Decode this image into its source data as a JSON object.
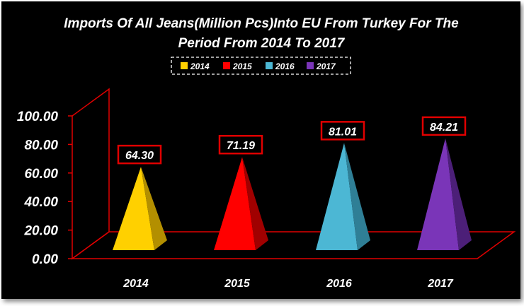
{
  "chart_data": {
    "type": "bar",
    "title_lines": [
      "Imports Of All Jeans(Million Pcs)Into EU From Turkey For The",
      "Period From 2014 To 2017"
    ],
    "categories": [
      "2014",
      "2015",
      "2016",
      "2017"
    ],
    "values": [
      64.3,
      71.19,
      81.01,
      84.21
    ],
    "value_labels": [
      "64.30",
      "71.19",
      "81.01",
      "84.21"
    ],
    "ylim": [
      0,
      100
    ],
    "y_ticks": [
      "0.00",
      "20.00",
      "40.00",
      "60.00",
      "80.00",
      "100.00"
    ],
    "xlabel": "",
    "ylabel": "",
    "legend": {
      "placement": "top",
      "entries": [
        "2014",
        "2015",
        "2016",
        "2017"
      ]
    },
    "colors": {
      "series": [
        "#ffd000",
        "#ff0000",
        "#4cb7d4",
        "#7a35b8"
      ],
      "series_dark": [
        "#b38f00",
        "#a00000",
        "#2f7f96",
        "#4c1f78"
      ],
      "axis": "#e00000",
      "background": "#000000",
      "text": "#ffffff"
    }
  }
}
